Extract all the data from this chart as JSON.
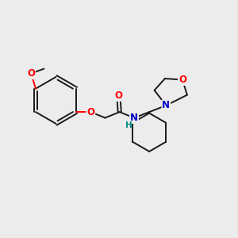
{
  "background_color": "#ececec",
  "bond_color": "#1a1a1a",
  "O_color": "#ff0000",
  "N_color": "#0000cc",
  "H_color": "#008b8b",
  "line_width": 1.4,
  "figsize": [
    3.0,
    3.0
  ],
  "dpi": 100,
  "xlim": [
    0,
    10
  ],
  "ylim": [
    0,
    10
  ]
}
